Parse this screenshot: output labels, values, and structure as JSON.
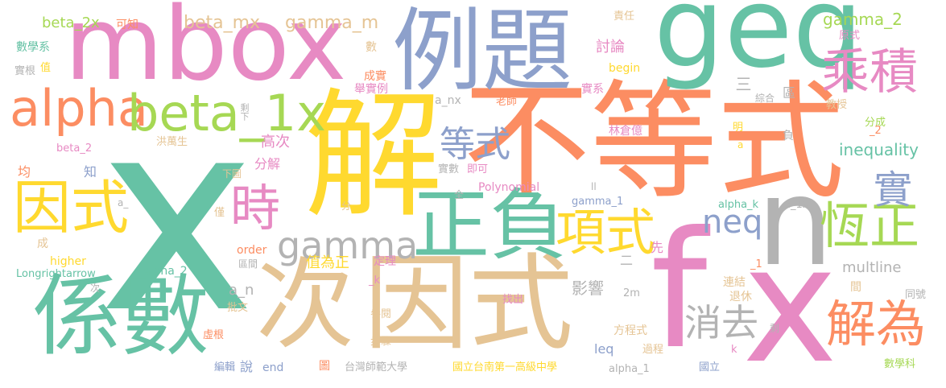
{
  "colors": {
    "green": "#66c2a5",
    "orange": "#fc8d62",
    "blue": "#8da0cb",
    "pink": "#e78ac3",
    "lime": "#a6d854",
    "yellow": "#ffd92f",
    "tan": "#e5c494",
    "gray": "#b3b3b3"
  },
  "words": {
    "x_big": "x",
    "jie": "解",
    "bu_deng_shi": "不等式",
    "geq": "geq",
    "li_ti": "例題",
    "mbox": "mbox",
    "xi_shu": "係數",
    "ci": "次",
    "yin_shi_big": "因式",
    "zheng_fu": "正負",
    "f": "f",
    "x_small": "x",
    "n": "n",
    "cheng_ji": "乘積",
    "alpha": "alpha",
    "beta_1x": "beta_1x",
    "yin_shi_left": "因式",
    "shi": "時",
    "xiang_shi": "項式",
    "gamma": "gamma",
    "heng_zheng": "恆正",
    "jie_wei": "解為",
    "xiao_qu": "消去",
    "deng_shi": "等式",
    "neq": "neq",
    "shi2": "實",
    "beta_mx": "beta_mx",
    "gamma_m": "gamma_m",
    "beta_2x": "beta_2x",
    "gamma_2": "gamma_2",
    "ke_zhi": "可知",
    "shu_xue_xi": "數學系",
    "shi_gen": "實根",
    "zhi": "值",
    "shu": "數",
    "ze_ren": "責任",
    "yuan_shi": "原式",
    "tao_lun": "討論",
    "begin": "begin",
    "cheng_shi": "成實",
    "ju_shi_li": "舉實例",
    "san": "三",
    "qu": "區",
    "shi_xi": "實系",
    "zong_he": "綜合",
    "a_nx": "a_nx",
    "lao_shi": "老師",
    "jiao_shou": "教授",
    "sheng_xia": "剩下",
    "beta_2": "beta_2",
    "hong_wan_sheng": "洪萬生",
    "gao_ci": "高次",
    "fen_jie": "分解",
    "lin_cang_yi": "林倉億",
    "ming": "明",
    "fu": "負",
    "fen_cheng": "分成",
    "sub_2": "_2",
    "a_letter": "a",
    "inequality": "inequality",
    "jun": "均",
    "zhi2": "知",
    "xia_tu": "下圖",
    "shi_shu": "實數",
    "ji_ke": "即可",
    "zhong": "中",
    "ll": "ll",
    "quan": "全",
    "polynomial": "Polynomial",
    "gamma_1": "gamma_1",
    "alpha_k": "alpha_k",
    "a_1x": "a_1x",
    "a_under": "a_",
    "jin": "僅",
    "fen": "分",
    "cheng": "成",
    "xian": "先",
    "order": "order",
    "higher": "higher",
    "qu_jian": "區間",
    "ding_li": "定理",
    "zhi_wei_zheng": "值為正",
    "er": "二",
    "sub_1": "_1",
    "multline": "multline",
    "longrightarrow": "Longrightarrow",
    "alpha_2": "alpha_2",
    "sub_k": "_k",
    "a_n": "a_n",
    "ying_xiang": "影響",
    "jian": "間",
    "lian_jie": "連結",
    "tong_hao": "同號",
    "ci2": "次",
    "pi_wen": "批文",
    "zhao_chu": "找出",
    "can_yue": "參閱",
    "two_m": "2m",
    "tui_xiu": "退休",
    "xu_gen": "虛根",
    "fang_cheng_shi": "方程式",
    "sheng": "剩",
    "bu_zhou": "步驟",
    "leq": "leq",
    "guo_cheng": "過程",
    "k_letter": "k",
    "bian_ji": "編輯",
    "shuo": "說",
    "end": "end",
    "tu": "圖",
    "taiwan_normal": "台灣師範大學",
    "tainan_first": "國立台南第一高級中學",
    "alpha_1": "alpha_1",
    "guo_li": "國立",
    "shu_xue_ke": "數學科"
  }
}
